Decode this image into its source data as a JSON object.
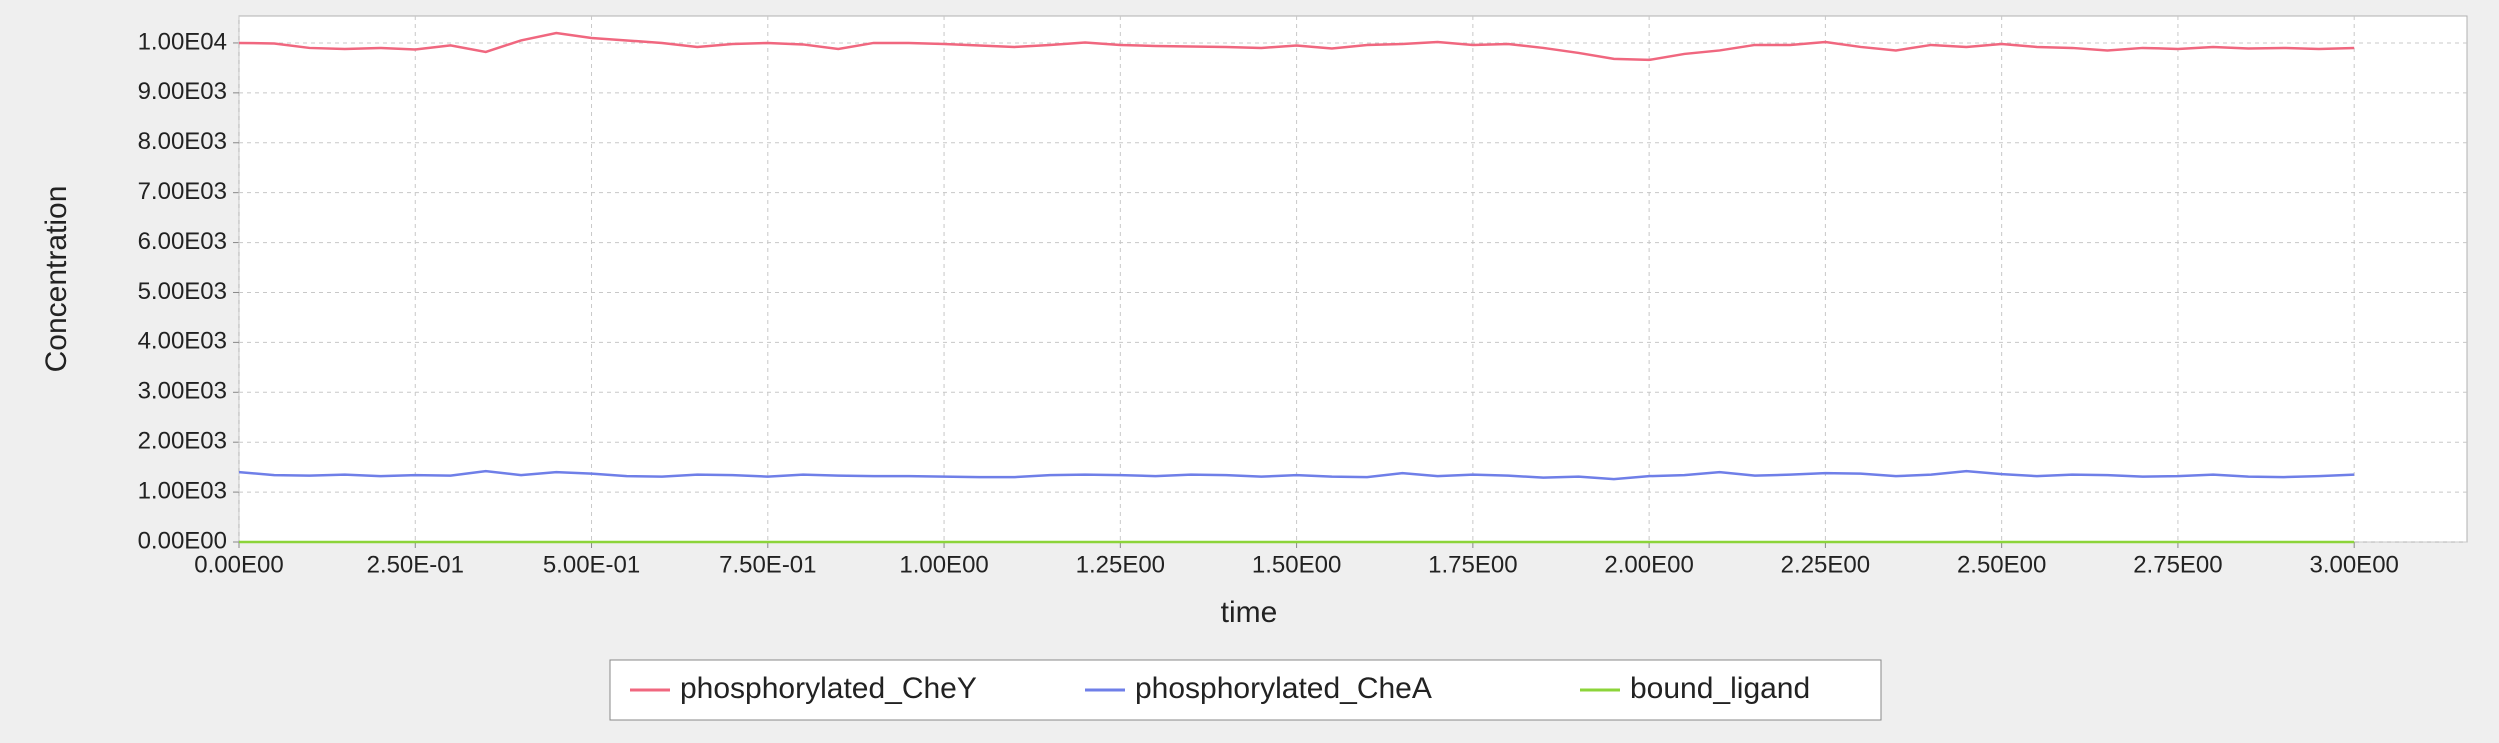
{
  "chart_data": {
    "type": "line",
    "xlabel": "time",
    "ylabel": "Concentration",
    "x": [
      0,
      0.05,
      0.1,
      0.15,
      0.2,
      0.25,
      0.3,
      0.35,
      0.4,
      0.45,
      0.5,
      0.55,
      0.6,
      0.65,
      0.7,
      0.75,
      0.8,
      0.85,
      0.9,
      0.95,
      1.0,
      1.05,
      1.1,
      1.15,
      1.2,
      1.25,
      1.3,
      1.35,
      1.4,
      1.45,
      1.5,
      1.55,
      1.6,
      1.65,
      1.7,
      1.75,
      1.8,
      1.85,
      1.9,
      1.95,
      2.0,
      2.05,
      2.1,
      2.15,
      2.2,
      2.25,
      2.3,
      2.35,
      2.4,
      2.45,
      2.5,
      2.55,
      2.6,
      2.65,
      2.7,
      2.75,
      2.8,
      2.85,
      2.9,
      2.95,
      3.0
    ],
    "series": [
      {
        "name": "phosphorylated_CheY",
        "color": "#f0677f",
        "values": [
          10000,
          9990,
          9900,
          9880,
          9900,
          9870,
          9950,
          9820,
          10050,
          10200,
          10100,
          10050,
          10000,
          9920,
          9980,
          10000,
          9970,
          9880,
          10000,
          10000,
          9980,
          9950,
          9920,
          9960,
          10010,
          9960,
          9940,
          9930,
          9920,
          9900,
          9950,
          9890,
          9960,
          9980,
          10020,
          9960,
          9980,
          9900,
          9800,
          9680,
          9660,
          9780,
          9850,
          9960,
          9960,
          10020,
          9920,
          9850,
          9960,
          9920,
          9980,
          9920,
          9900,
          9850,
          9900,
          9880,
          9920,
          9890,
          9900,
          9880,
          9900
        ]
      },
      {
        "name": "phosphorylated_CheA",
        "color": "#6f7fe8",
        "values": [
          1400,
          1340,
          1330,
          1350,
          1320,
          1340,
          1330,
          1420,
          1340,
          1400,
          1370,
          1320,
          1310,
          1350,
          1340,
          1310,
          1350,
          1330,
          1320,
          1320,
          1310,
          1300,
          1300,
          1340,
          1350,
          1340,
          1320,
          1350,
          1340,
          1310,
          1340,
          1310,
          1300,
          1380,
          1320,
          1350,
          1330,
          1290,
          1310,
          1260,
          1320,
          1340,
          1400,
          1330,
          1350,
          1380,
          1370,
          1320,
          1350,
          1420,
          1360,
          1320,
          1350,
          1340,
          1310,
          1320,
          1350,
          1310,
          1300,
          1320,
          1350
        ]
      },
      {
        "name": "bound_ligand",
        "color": "#8cd43a",
        "values": [
          0,
          0,
          0,
          0,
          0,
          0,
          0,
          0,
          0,
          0,
          0,
          0,
          0,
          0,
          0,
          0,
          0,
          0,
          0,
          0,
          0,
          0,
          0,
          0,
          0,
          0,
          0,
          0,
          0,
          0,
          0,
          0,
          0,
          0,
          0,
          0,
          0,
          0,
          0,
          0,
          0,
          0,
          0,
          0,
          0,
          0,
          0,
          0,
          0,
          0,
          0,
          0,
          0,
          0,
          0,
          0,
          0,
          0,
          0,
          0,
          0
        ]
      }
    ],
    "xlim": [
      0,
      3.16
    ],
    "ylim": [
      0,
      10540
    ],
    "xticks": [
      {
        "value": 0,
        "label": "0.00E00"
      },
      {
        "value": 0.25,
        "label": "2.50E-01"
      },
      {
        "value": 0.5,
        "label": "5.00E-01"
      },
      {
        "value": 0.75,
        "label": "7.50E-01"
      },
      {
        "value": 1.0,
        "label": "1.00E00"
      },
      {
        "value": 1.25,
        "label": "1.25E00"
      },
      {
        "value": 1.5,
        "label": "1.50E00"
      },
      {
        "value": 1.75,
        "label": "1.75E00"
      },
      {
        "value": 2.0,
        "label": "2.00E00"
      },
      {
        "value": 2.25,
        "label": "2.25E00"
      },
      {
        "value": 2.5,
        "label": "2.50E00"
      },
      {
        "value": 2.75,
        "label": "2.75E00"
      },
      {
        "value": 3.0,
        "label": "3.00E00"
      }
    ],
    "yticks": [
      {
        "value": 0,
        "label": "0.00E00"
      },
      {
        "value": 1000,
        "label": "1.00E03"
      },
      {
        "value": 2000,
        "label": "2.00E03"
      },
      {
        "value": 3000,
        "label": "3.00E03"
      },
      {
        "value": 4000,
        "label": "4.00E03"
      },
      {
        "value": 5000,
        "label": "5.00E03"
      },
      {
        "value": 6000,
        "label": "6.00E03"
      },
      {
        "value": 7000,
        "label": "7.00E03"
      },
      {
        "value": 8000,
        "label": "8.00E03"
      },
      {
        "value": 9000,
        "label": "9.00E03"
      },
      {
        "value": 10000,
        "label": "1.00E04"
      }
    ],
    "grid": true,
    "legend": "bottom"
  }
}
